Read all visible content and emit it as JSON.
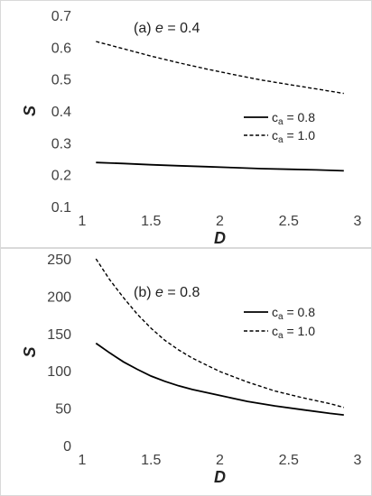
{
  "chart_data": [
    {
      "type": "line",
      "panel_label": "(a) e = 0.4",
      "panel_label_prefix": "(a) ",
      "panel_label_var": "e",
      "panel_label_suffix": " = 0.4",
      "xlabel": "D",
      "ylabel": "S",
      "xlim": [
        1,
        3
      ],
      "ylim": [
        0.1,
        0.7
      ],
      "xticks": [
        "1",
        "1.5",
        "2",
        "2.5",
        "3"
      ],
      "yticks": [
        "0.1",
        "0.2",
        "0.3",
        "0.4",
        "0.5",
        "0.6",
        "0.7"
      ],
      "grid": false,
      "legend_position": "right",
      "series": [
        {
          "name": "ca = 0.8",
          "name_base": "c",
          "name_sub": "a",
          "name_rest": " = 0.8",
          "style": "solid",
          "color": "#000000",
          "x": [
            1.1,
            1.3,
            1.5,
            1.7,
            1.9,
            2.1,
            2.3,
            2.5,
            2.7,
            2.9
          ],
          "y": [
            0.238,
            0.235,
            0.231,
            0.228,
            0.225,
            0.222,
            0.219,
            0.217,
            0.215,
            0.212
          ]
        },
        {
          "name": "ca = 1.0",
          "name_base": "c",
          "name_sub": "a",
          "name_rest": " = 1.0",
          "style": "dashed",
          "color": "#000000",
          "x": [
            1.1,
            1.3,
            1.5,
            1.7,
            1.9,
            2.1,
            2.3,
            2.5,
            2.7,
            2.9
          ],
          "y": [
            0.618,
            0.595,
            0.572,
            0.551,
            0.532,
            0.514,
            0.497,
            0.483,
            0.469,
            0.455
          ]
        }
      ]
    },
    {
      "type": "line",
      "panel_label": "(b) e = 0.8",
      "panel_label_prefix": "(b) ",
      "panel_label_var": "e",
      "panel_label_suffix": " = 0.8",
      "xlabel": "D",
      "ylabel": "S",
      "xlim": [
        1,
        3
      ],
      "ylim": [
        0,
        250
      ],
      "xticks": [
        "1",
        "1.5",
        "2",
        "2.5",
        "3"
      ],
      "yticks": [
        "0",
        "50",
        "100",
        "150",
        "200",
        "250"
      ],
      "grid": false,
      "legend_position": "right",
      "series": [
        {
          "name": "ca = 0.8",
          "name_base": "c",
          "name_sub": "a",
          "name_rest": " = 0.8",
          "style": "solid",
          "color": "#000000",
          "x": [
            1.1,
            1.2,
            1.3,
            1.4,
            1.5,
            1.6,
            1.7,
            1.8,
            2.0,
            2.2,
            2.4,
            2.6,
            2.8,
            2.9
          ],
          "y": [
            137,
            124,
            112,
            102,
            93,
            86,
            80,
            75,
            67,
            59,
            53,
            48,
            43,
            41
          ]
        },
        {
          "name": "ca = 1.0",
          "name_base": "c",
          "name_sub": "a",
          "name_rest": " = 1.0",
          "style": "dashed",
          "color": "#000000",
          "x": [
            1.1,
            1.2,
            1.3,
            1.4,
            1.5,
            1.6,
            1.7,
            1.8,
            2.0,
            2.2,
            2.4,
            2.6,
            2.8,
            2.9
          ],
          "y": [
            250,
            222,
            198,
            176,
            157,
            141,
            128,
            117,
            99,
            85,
            73,
            64,
            56,
            51
          ]
        }
      ]
    }
  ]
}
